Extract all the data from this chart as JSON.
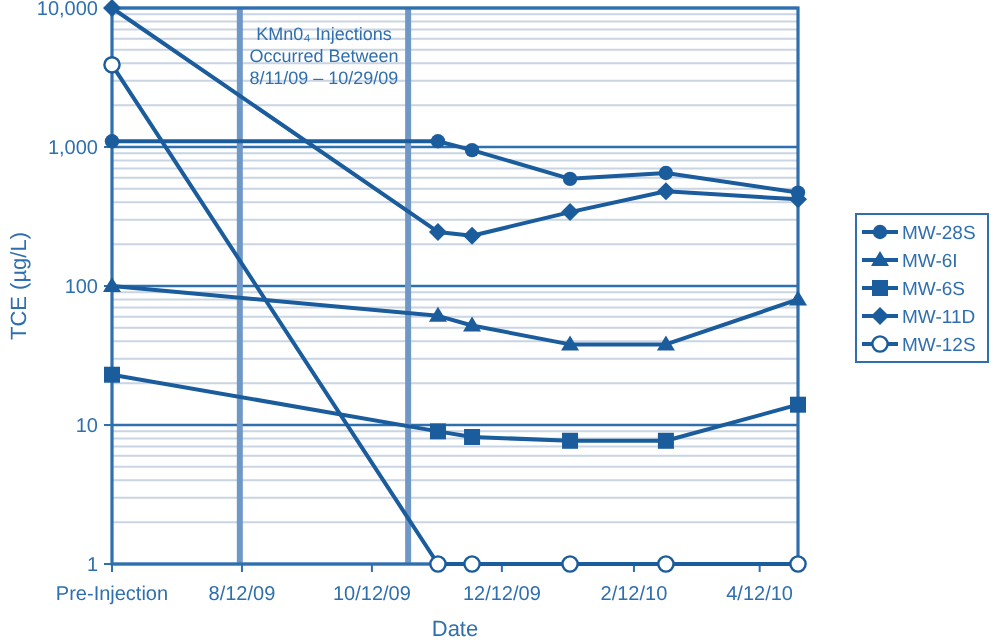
{
  "chart_data": {
    "type": "line",
    "xlabel": "Date",
    "ylabel": "TCE (µg/L)",
    "x": [
      "2009-06-12",
      "2009-11-12",
      "2009-11-28",
      "2010-01-13",
      "2010-02-27",
      "2010-04-30"
    ],
    "xlim": [
      "2009-06-12",
      "2010-04-30"
    ],
    "xticks": [
      {
        "value": "2009-06-12",
        "label": "Pre-Injection"
      },
      {
        "value": "2009-08-12",
        "label": "8/12/09"
      },
      {
        "value": "2009-10-12",
        "label": "10/12/09"
      },
      {
        "value": "2009-12-12",
        "label": "12/12/09"
      },
      {
        "value": "2010-02-12",
        "label": "2/12/10"
      },
      {
        "value": "2010-04-12",
        "label": "4/12/10"
      }
    ],
    "log": "y",
    "ylim": [
      1,
      10000
    ],
    "yticks": [
      1,
      10,
      100,
      {
        "value": 1000,
        "label": "1,000"
      },
      {
        "value": 10000,
        "label": "10,000"
      }
    ],
    "grid": "y",
    "legend": "right",
    "line_style": "solid",
    "series": [
      {
        "name": "MW-28S",
        "color": "#1a5c9c",
        "marker": "circle",
        "values": [
          1100,
          1100,
          950,
          590,
          650,
          470
        ]
      },
      {
        "name": "MW-6I",
        "color": "#1a5c9c",
        "marker": "triangle",
        "values": [
          100,
          61,
          52,
          38,
          38,
          80
        ]
      },
      {
        "name": "MW-6S",
        "color": "#1a5c9c",
        "marker": "square",
        "values": [
          23,
          9,
          8.2,
          7.7,
          7.7,
          14
        ]
      },
      {
        "name": "MW-11D",
        "color": "#1a5c9c",
        "marker": "diamond",
        "values": [
          10000,
          245,
          230,
          340,
          480,
          420
        ]
      },
      {
        "name": "MW-12S",
        "color": "#1a5c9c",
        "marker": "open-circle",
        "values": [
          3900,
          1,
          1,
          1,
          1,
          1
        ]
      }
    ],
    "ref_lines": [
      {
        "axis": "x",
        "value": "2009-08-11",
        "label": null,
        "color": "#6f98c6"
      },
      {
        "axis": "x",
        "value": "2009-10-29",
        "label": null,
        "color": "#6f98c6"
      }
    ],
    "annotations": [
      "KMn0₄ Injections\nOccurred Between\n8/11/09 – 10/29/09"
    ]
  }
}
